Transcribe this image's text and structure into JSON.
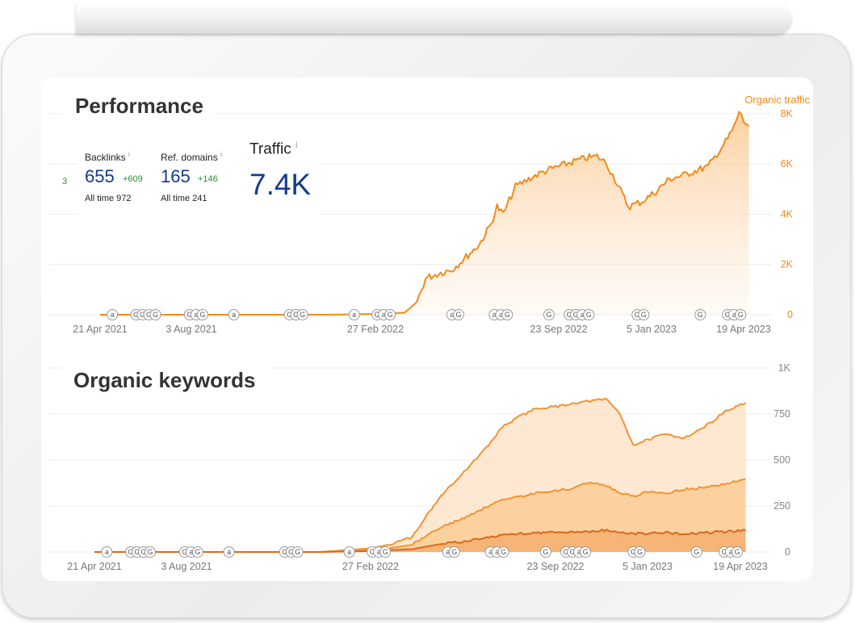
{
  "colors": {
    "accent": "#f28a1a",
    "line_main": "#f28a1a",
    "line_mid": "#f39332",
    "line_dark": "#d9691b",
    "fill_light": "#fde0c2",
    "fill_mid": "#fbc98f",
    "fill_dark": "#f4a968",
    "metric_blue": "#123a8f",
    "metric_green": "#2c8a35",
    "grid": "#ececec",
    "annotation_text": "#555555"
  },
  "performance": {
    "title": "Performance",
    "series_label": "Organic traffic",
    "side_number": "3",
    "backlinks": {
      "label": "Backlinks",
      "info": "i",
      "value": "655",
      "delta": "+609",
      "all_time_label": "All time",
      "all_time_value": "972"
    },
    "ref_domains": {
      "label": "Ref. domains",
      "info": "i",
      "value": "165",
      "delta": "+146",
      "all_time_label": "All time",
      "all_time_value": "241"
    },
    "traffic": {
      "label": "Traffic",
      "info": "i",
      "value": "7.4K"
    }
  },
  "keywords": {
    "title": "Organic keywords"
  },
  "annotation_icons": {
    "a": "ahrefs-update-icon",
    "g": "google-update-icon"
  },
  "chart_data": [
    {
      "type": "line",
      "chart": "organic-traffic",
      "x_tick_labels": [
        "21 Apr 2021",
        "3 Aug 2021",
        "27 Feb 2022",
        "23 Sep 2022",
        "5 Jan 2023",
        "19 Apr 2023"
      ],
      "x_tick_dates": [
        "2021-04-21",
        "2021-08-03",
        "2022-02-27",
        "2022-09-23",
        "2023-01-05",
        "2023-04-19"
      ],
      "y_ticks": [
        0,
        2000,
        4000,
        6000,
        8000
      ],
      "y_tick_labels": [
        "0",
        "2K",
        "4K",
        "6K",
        "8K"
      ],
      "ylim": [
        0,
        8800
      ],
      "grid": true,
      "axis_position": "right",
      "series": [
        {
          "name": "Organic traffic",
          "x": [
            "2021-04-21",
            "2021-08-01",
            "2022-01-01",
            "2022-02-27",
            "2022-04-01",
            "2022-04-15",
            "2022-04-25",
            "2022-05-10",
            "2022-05-25",
            "2022-06-10",
            "2022-06-25",
            "2022-07-08",
            "2022-07-15",
            "2022-07-22",
            "2022-08-05",
            "2022-08-15",
            "2022-08-25",
            "2022-09-10",
            "2022-09-23",
            "2022-10-10",
            "2022-10-25",
            "2022-11-05",
            "2022-11-15",
            "2022-11-25",
            "2022-12-10",
            "2022-12-25",
            "2023-01-10",
            "2023-01-25",
            "2023-02-10",
            "2023-02-25",
            "2023-03-10",
            "2023-03-20",
            "2023-04-01",
            "2023-04-10",
            "2023-04-14",
            "2023-04-19",
            "2023-04-25"
          ],
          "values": [
            0,
            0,
            0,
            30,
            80,
            500,
            1450,
            1650,
            1800,
            2300,
            2800,
            3600,
            4300,
            4000,
            5100,
            5300,
            5500,
            5750,
            5900,
            6100,
            6250,
            6300,
            6050,
            5400,
            4300,
            4500,
            4900,
            5400,
            5550,
            5750,
            5900,
            6400,
            7000,
            7600,
            8100,
            7700,
            7500
          ]
        }
      ],
      "annotations": [
        {
          "x": "2021-05-05",
          "icons": [
            "a"
          ]
        },
        {
          "x": "2021-06-01",
          "icons": [
            "g",
            "g",
            "g",
            "g"
          ]
        },
        {
          "x": "2021-08-01",
          "icons": [
            "g",
            "a",
            "g"
          ]
        },
        {
          "x": "2021-09-20",
          "icons": [
            "a"
          ]
        },
        {
          "x": "2021-11-22",
          "icons": [
            "g",
            "g",
            "g"
          ]
        },
        {
          "x": "2022-02-03",
          "icons": [
            "a"
          ]
        },
        {
          "x": "2022-03-01",
          "icons": [
            "g",
            "a",
            "g"
          ]
        },
        {
          "x": "2022-05-25",
          "icons": [
            "a",
            "g"
          ]
        },
        {
          "x": "2022-07-12",
          "icons": [
            "a",
            "a",
            "g"
          ]
        },
        {
          "x": "2022-09-12",
          "icons": [
            "g"
          ]
        },
        {
          "x": "2022-10-05",
          "icons": [
            "g",
            "g",
            "a",
            "g"
          ]
        },
        {
          "x": "2022-12-20",
          "icons": [
            "g",
            "g"
          ]
        },
        {
          "x": "2023-03-01",
          "icons": [
            "g"
          ]
        },
        {
          "x": "2023-04-01",
          "icons": [
            "g",
            "a",
            "g"
          ]
        }
      ]
    },
    {
      "type": "area",
      "chart": "organic-keywords",
      "x_tick_labels": [
        "21 Apr 2021",
        "3 Aug 2021",
        "27 Feb 2022",
        "23 Sep 2022",
        "5 Jan 2023",
        "19 Apr 2023"
      ],
      "x_tick_dates": [
        "2021-04-21",
        "2021-08-03",
        "2022-02-27",
        "2022-09-23",
        "2023-01-05",
        "2023-04-19"
      ],
      "y_ticks": [
        0,
        250,
        500,
        750,
        1000
      ],
      "y_tick_labels": [
        "0",
        "250",
        "500",
        "750",
        "1K"
      ],
      "ylim": [
        0,
        1000
      ],
      "grid": true,
      "axis_position": "right",
      "stacked": false,
      "x": [
        "2021-04-21",
        "2021-08-01",
        "2022-01-01",
        "2022-02-27",
        "2022-03-20",
        "2022-04-15",
        "2022-05-01",
        "2022-05-20",
        "2022-06-15",
        "2022-07-10",
        "2022-07-25",
        "2022-08-15",
        "2022-09-01",
        "2022-09-23",
        "2022-10-15",
        "2022-11-01",
        "2022-11-20",
        "2022-12-05",
        "2022-12-20",
        "2023-01-05",
        "2023-01-25",
        "2023-02-15",
        "2023-03-10",
        "2023-04-01",
        "2023-04-19",
        "2023-04-25"
      ],
      "series": [
        {
          "values": [
            0,
            0,
            0,
            20,
            40,
            80,
            200,
            320,
            450,
            580,
            680,
            740,
            780,
            790,
            810,
            820,
            830,
            750,
            580,
            610,
            640,
            620,
            680,
            760,
            800,
            810
          ]
        },
        {
          "values": [
            0,
            0,
            0,
            10,
            20,
            40,
            90,
            140,
            190,
            250,
            280,
            300,
            320,
            330,
            350,
            380,
            360,
            320,
            300,
            330,
            320,
            340,
            350,
            370,
            390,
            395
          ]
        },
        {
          "values": [
            0,
            0,
            0,
            5,
            10,
            15,
            30,
            45,
            60,
            80,
            90,
            100,
            105,
            105,
            108,
            110,
            120,
            105,
            100,
            100,
            105,
            100,
            105,
            110,
            115,
            120
          ]
        }
      ]
    }
  ]
}
